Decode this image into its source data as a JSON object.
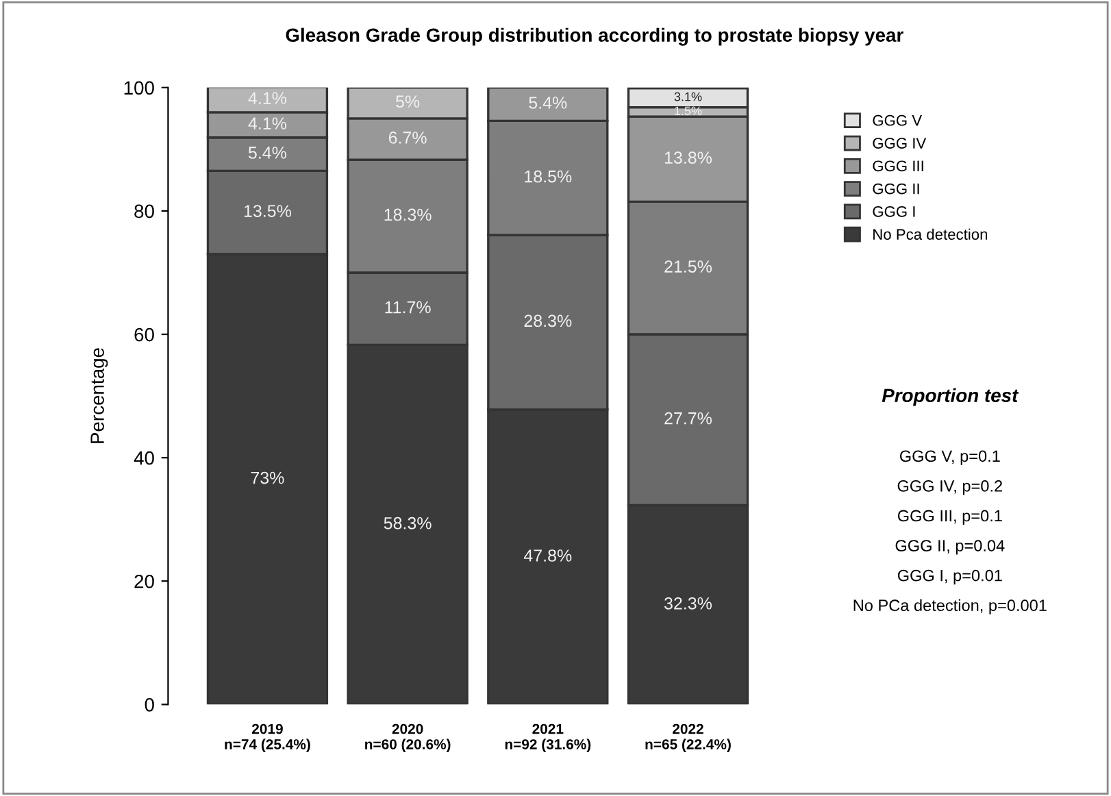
{
  "chart_data": {
    "type": "bar",
    "title": "Gleason Grade Group distribution according to prostate biopsy year",
    "ylabel": "Percentage",
    "categories": [
      "2019\nn=74 (25.4%)",
      "2020\nn=60 (20.6%)",
      "2021\nn=92 (31.6%)",
      "2022\nn=65 (22.4%)"
    ],
    "stacked": true,
    "ylim": [
      0,
      100
    ],
    "yticks": [
      0,
      20,
      40,
      60,
      80,
      100
    ],
    "grid": false,
    "legend": "top right",
    "series": [
      {
        "name": "No Pca detection",
        "color": "#3a3a3a",
        "values": [
          73,
          58.3,
          47.8,
          32.3
        ],
        "value_labels": [
          "73%",
          "58.3%",
          "47.8%",
          "32.3%"
        ]
      },
      {
        "name": "GGG I",
        "color": "#6a6a6a",
        "values": [
          13.5,
          11.7,
          28.3,
          27.7
        ],
        "value_labels": [
          "13.5%",
          "11.7%",
          "28.3%",
          "27.7%"
        ]
      },
      {
        "name": "GGG II",
        "color": "#7e7e7e",
        "values": [
          5.4,
          18.3,
          18.5,
          21.5
        ],
        "value_labels": [
          "5.4%",
          "18.3%",
          "18.5%",
          "21.5%"
        ]
      },
      {
        "name": "GGG III",
        "color": "#989898",
        "values": [
          4.1,
          6.7,
          5.4,
          13.8
        ],
        "value_labels": [
          "4.1%",
          "6.7%",
          "5.4%",
          "13.8%"
        ]
      },
      {
        "name": "GGG IV",
        "color": "#b5b5b5",
        "values": [
          4.1,
          5,
          null,
          1.5
        ],
        "value_labels": [
          "4.1%",
          "5%",
          null,
          "1.5%"
        ]
      },
      {
        "name": "GGG V",
        "color": "#e2e2e2",
        "values": [
          null,
          null,
          null,
          3.1
        ],
        "value_labels": [
          null,
          null,
          null,
          "3.1%"
        ]
      }
    ],
    "annotations": [
      "Proportion test",
      "GGG V, p=0.1",
      "GGG IV, p=0.2",
      "GGG III, p=0.1",
      "GGG II, p=0.04",
      "GGG I, p=0.01",
      "No PCa detection, p=0.001"
    ]
  }
}
